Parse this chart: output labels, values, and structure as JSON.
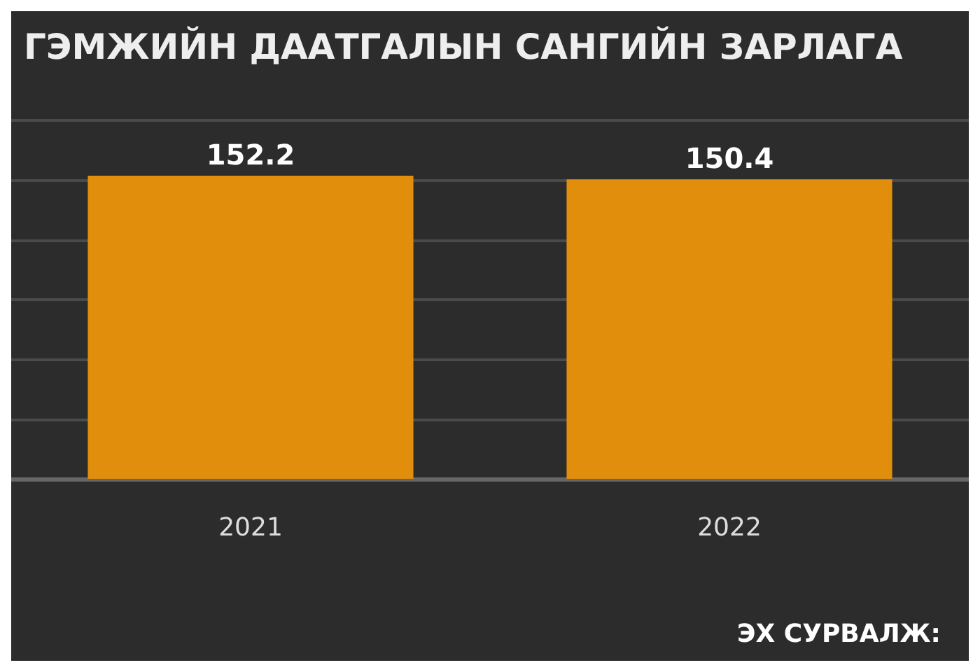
{
  "chart_data": {
    "type": "bar",
    "title": "ГЭМЖИЙН ДААТГАЛЫН САНГИЙН ЗАРЛАГА",
    "categories": [
      "2021",
      "2022"
    ],
    "values": [
      152.2,
      150.4
    ],
    "color": "#e08e0b",
    "data_labels": true,
    "grid": "y",
    "annotations": [
      "ЭХ СУРВАЛЖ:"
    ]
  }
}
